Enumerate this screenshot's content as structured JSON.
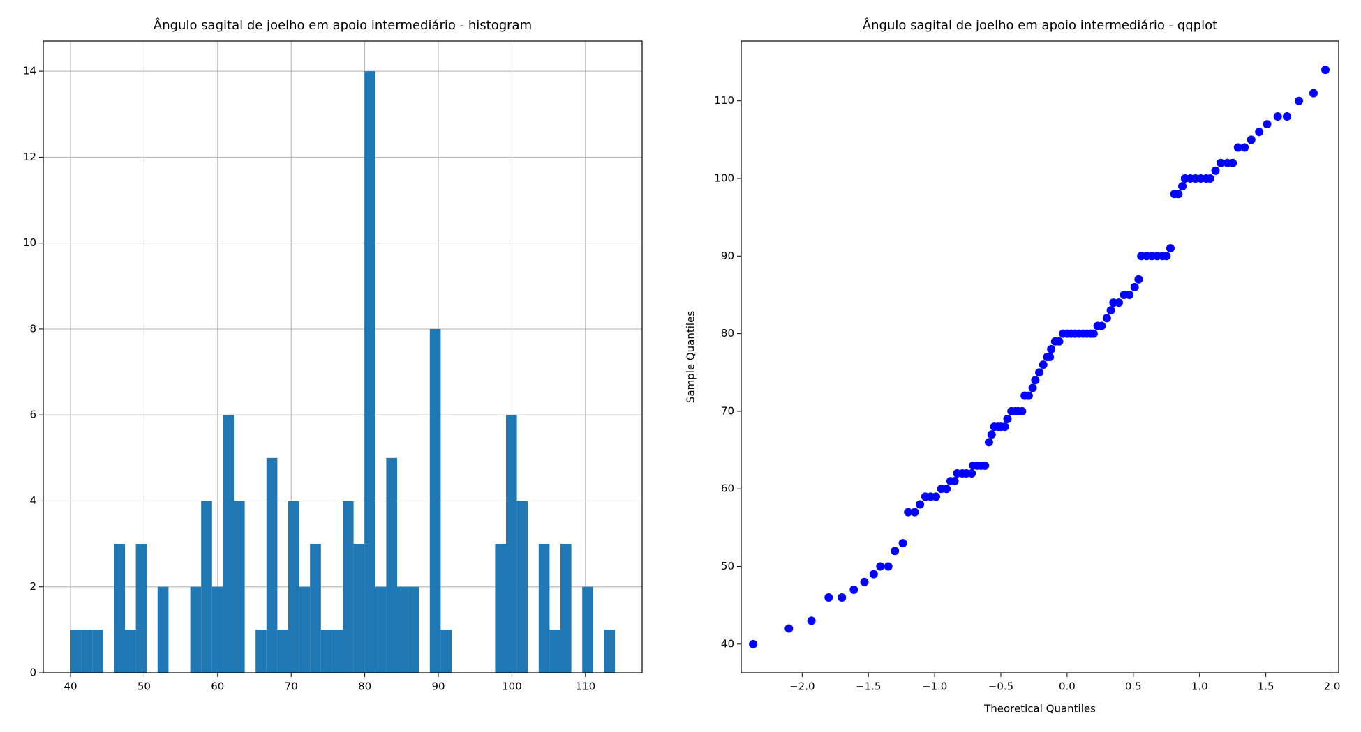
{
  "chart_data": [
    {
      "type": "histogram",
      "title": "Ângulo sagital de joelho em apoio intermediário - histogram",
      "bins": [
        40,
        41.48,
        42.96,
        44.44,
        45.92,
        47.4,
        48.88,
        50.36,
        51.84,
        53.32,
        54.8,
        56.28,
        57.76,
        59.24,
        60.72,
        62.2,
        63.68,
        65.16,
        66.64,
        68.12,
        69.6,
        71.08,
        72.56,
        74.04,
        75.52,
        77,
        78.48,
        79.96,
        81.44,
        82.92,
        84.4,
        85.88,
        87.36,
        88.84,
        90.32,
        91.8,
        93.28,
        94.76,
        96.24,
        97.72,
        99.2,
        100.68,
        102.16,
        103.64,
        105.12,
        106.6,
        108.08,
        109.56,
        111.04,
        112.52,
        114
      ],
      "counts": [
        1,
        1,
        1,
        0,
        3,
        1,
        3,
        0,
        2,
        0,
        0,
        2,
        4,
        2,
        6,
        4,
        0,
        1,
        5,
        1,
        4,
        2,
        3,
        1,
        1,
        4,
        3,
        14,
        2,
        5,
        2,
        2,
        0,
        8,
        1,
        0,
        0,
        0,
        0,
        3,
        6,
        4,
        0,
        3,
        1,
        3,
        0,
        2,
        0,
        1
      ],
      "color": "#1f77b4",
      "xlim": [
        36.3,
        117.7
      ],
      "ylim": [
        0,
        14.7
      ],
      "xticks": [
        40,
        50,
        60,
        70,
        80,
        90,
        100,
        110
      ],
      "yticks": [
        0,
        2,
        4,
        6,
        8,
        10,
        12,
        14
      ],
      "grid": true
    },
    {
      "type": "scatter",
      "title": "Ângulo sagital de joelho em apoio intermediário - qqplot",
      "x_label": "Theoretical Quantiles",
      "y_label": "Sample Quantiles",
      "x": [
        -2.37,
        -2.1,
        -1.93,
        -1.8,
        -1.7,
        -1.61,
        -1.53,
        -1.46,
        -1.41,
        -1.35,
        -1.3,
        -1.24,
        -1.2,
        -1.15,
        -1.11,
        -1.07,
        -1.03,
        -0.99,
        -0.95,
        -0.91,
        -0.88,
        -0.85,
        -0.83,
        -0.79,
        -0.76,
        -0.72,
        -0.71,
        -0.68,
        -0.65,
        -0.62,
        -0.59,
        -0.57,
        -0.55,
        -0.52,
        -0.5,
        -0.47,
        -0.45,
        -0.42,
        -0.39,
        -0.37,
        -0.34,
        -0.32,
        -0.29,
        -0.26,
        -0.24,
        -0.21,
        -0.18,
        -0.15,
        -0.13,
        -0.12,
        -0.09,
        -0.06,
        -0.03,
        0,
        0.03,
        0.06,
        0.09,
        0.12,
        0.15,
        0.18,
        0.2,
        0.23,
        0.26,
        0.3,
        0.33,
        0.35,
        0.39,
        0.43,
        0.47,
        0.51,
        0.54,
        0.56,
        0.6,
        0.64,
        0.68,
        0.72,
        0.75,
        0.78,
        0.81,
        0.84,
        0.87,
        0.89,
        0.93,
        0.97,
        1.01,
        1.05,
        1.08,
        1.12,
        1.16,
        1.21,
        1.25,
        1.29,
        1.34,
        1.39,
        1.45,
        1.51,
        1.59,
        1.66,
        1.75,
        1.86,
        1.95
      ],
      "y": [
        40,
        42,
        43,
        46,
        46,
        47,
        48,
        49,
        50,
        50,
        52,
        53,
        57,
        57,
        58,
        59,
        59,
        59,
        60,
        60,
        61,
        61,
        62,
        62,
        62,
        62,
        63,
        63,
        63,
        63,
        66,
        67,
        68,
        68,
        68,
        68,
        69,
        70,
        70,
        70,
        70,
        72,
        72,
        73,
        74,
        75,
        76,
        77,
        77,
        78,
        79,
        79,
        80,
        80,
        80,
        80,
        80,
        80,
        80,
        80,
        80,
        81,
        81,
        82,
        83,
        84,
        84,
        85,
        85,
        86,
        87,
        90,
        90,
        90,
        90,
        90,
        90,
        91,
        98,
        98,
        99,
        100,
        100,
        100,
        100,
        100,
        100,
        101,
        102,
        102,
        102,
        104,
        104,
        105,
        106,
        107,
        108,
        108,
        110,
        111,
        114
      ],
      "color": "#0000ff",
      "xlim": [
        -2.46,
        2.05
      ],
      "ylim": [
        36.3,
        117.7
      ],
      "xticks": [
        {
          "value": -2,
          "label": "−2.0"
        },
        {
          "value": -1.5,
          "label": "−1.5"
        },
        {
          "value": -1,
          "label": "−1.0"
        },
        {
          "value": -0.5,
          "label": "−0.5"
        },
        {
          "value": 0,
          "label": "0.0"
        },
        0.5,
        {
          "value": 1,
          "label": "1.0"
        },
        1.5,
        {
          "value": 2,
          "label": "2.0"
        }
      ],
      "yticks": [
        40,
        50,
        60,
        70,
        80,
        90,
        100,
        110
      ],
      "grid": false
    }
  ]
}
